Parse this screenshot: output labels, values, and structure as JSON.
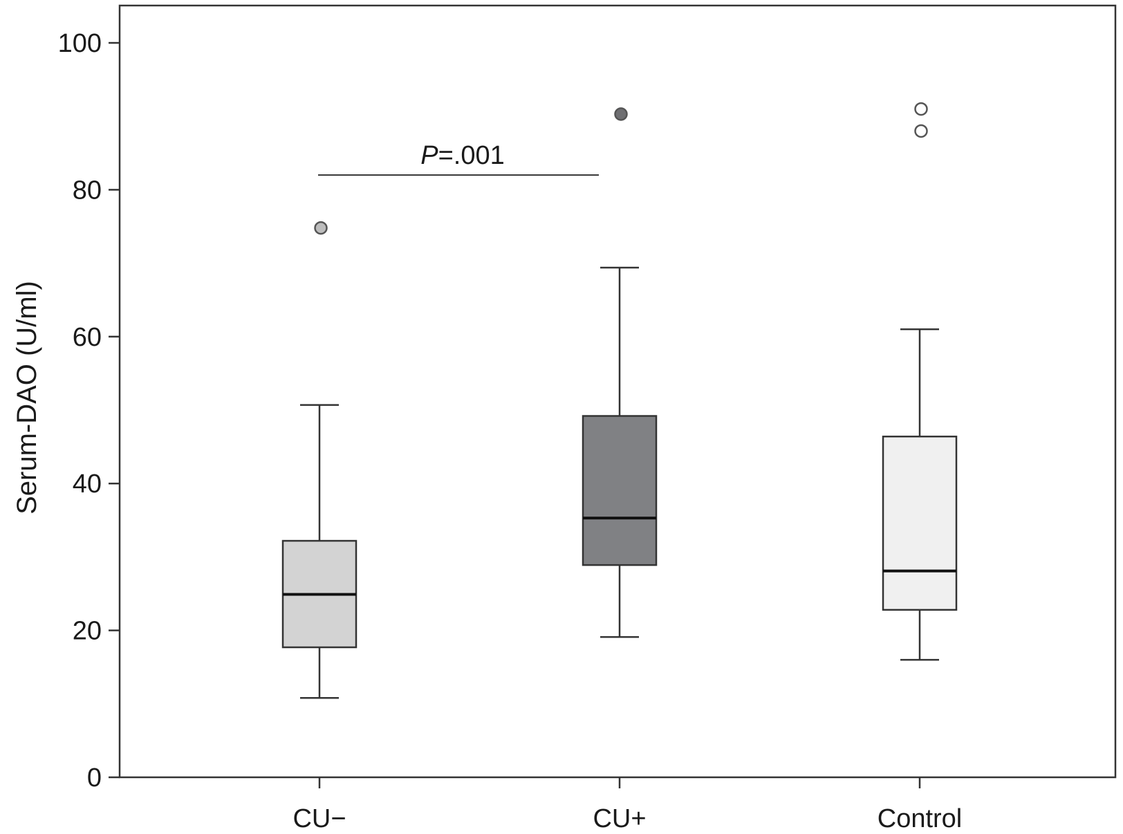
{
  "chart_data": {
    "type": "box",
    "title": "",
    "xlabel": "",
    "ylabel": "Serum-DAO (U/ml)",
    "ylim": [
      0,
      100
    ],
    "yticks": [
      0,
      20,
      40,
      60,
      80,
      100
    ],
    "grid": false,
    "legend": "none",
    "categories": [
      "CU−",
      "CU+",
      "Control"
    ],
    "series": [
      {
        "category": "CU−",
        "whisker_low": 10.8,
        "q1": 17.7,
        "median": 24.9,
        "q3": 32.2,
        "whisker_high": 50.7,
        "outliers": [
          74.8
        ],
        "fill": "#d3d3d3",
        "outlier_fill": "#bdbdbd"
      },
      {
        "category": "CU+",
        "whisker_low": 19.1,
        "q1": 28.9,
        "median": 35.3,
        "q3": 49.2,
        "whisker_high": 69.4,
        "outliers": [
          90.3
        ],
        "fill": "#808184",
        "outlier_fill": "#6f6f72"
      },
      {
        "category": "Control",
        "whisker_low": 16.0,
        "q1": 22.8,
        "median": 28.1,
        "q3": 46.4,
        "whisker_high": 61.0,
        "outliers": [
          91.0,
          88.0
        ],
        "fill": "#f0f0f0",
        "outlier_fill": "#ffffff"
      }
    ],
    "annotation": {
      "text_italic": "P",
      "text_rest": "=.001",
      "from_category": "CU−",
      "to_category": "CU+",
      "y": 82
    }
  }
}
